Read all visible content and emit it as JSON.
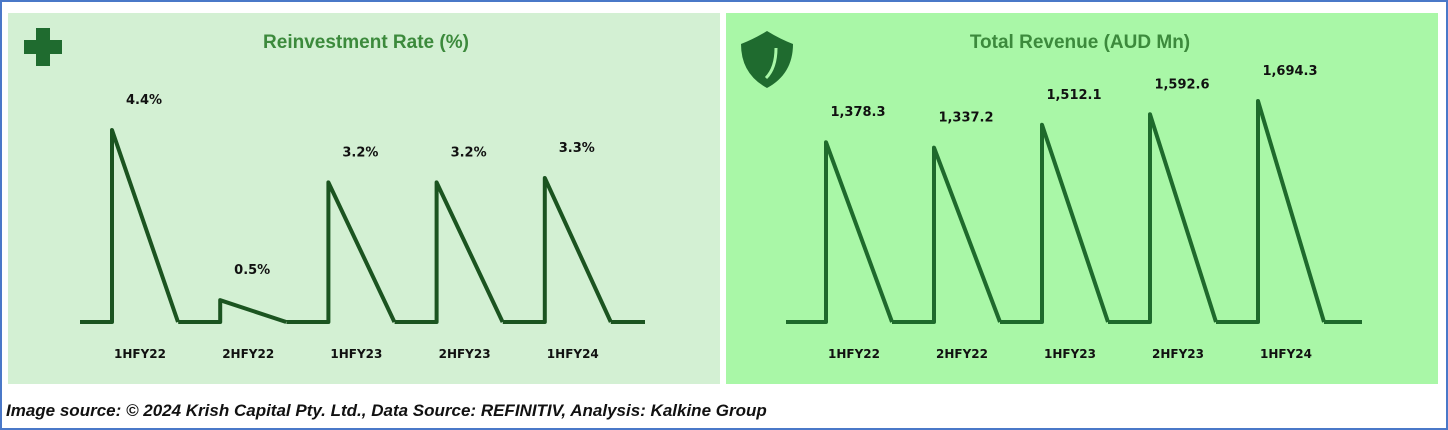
{
  "chart_data": [
    {
      "type": "spike",
      "title": "Reinvestment Rate (%)",
      "color": "#1b5420",
      "categories": [
        "1HFY22",
        "2HFY22",
        "1HFY23",
        "2HFY23",
        "1HFY24"
      ],
      "values": [
        4.4,
        0.5,
        3.2,
        3.2,
        3.3
      ],
      "value_labels": [
        "4.4%",
        "0.5%",
        "3.2%",
        "3.2%",
        "3.3%"
      ]
    },
    {
      "type": "spike",
      "title": "Total Revenue (AUD Mn)",
      "color": "#1e6a2c",
      "categories": [
        "1HFY22",
        "2HFY22",
        "1HFY23",
        "2HFY23",
        "1HFY24"
      ],
      "values": [
        1378.3,
        1337.2,
        1512.1,
        1592.6,
        1694.3
      ],
      "value_labels": [
        "1,378.3",
        "1,337.2",
        "1,512.1",
        "1,592.6",
        "1,694.3"
      ]
    }
  ],
  "caption": "Image source: © 2024 Krish Capital Pty. Ltd., Data Source: REFINITIV, Analysis: Kalkine Group"
}
